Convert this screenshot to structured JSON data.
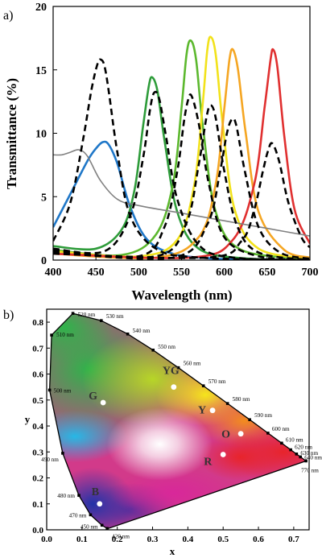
{
  "figure": {
    "panel_a_label": "a)",
    "panel_b_label": "b)"
  },
  "chart_data": [
    {
      "type": "line",
      "panel": "a)",
      "xlabel": "Wavelength (nm)",
      "ylabel": "Transmittance (%)",
      "xlim": [
        400,
        700
      ],
      "ylim": [
        0,
        20
      ],
      "xticks": [
        400,
        450,
        500,
        550,
        600,
        650,
        700
      ],
      "yticks": [
        0,
        5,
        10,
        15,
        20
      ],
      "grid": false,
      "series": [
        {
          "color": "#1f77c8",
          "style": "solid",
          "x": [
            400,
            420,
            440,
            450,
            458,
            465,
            475,
            490,
            510,
            540,
            580,
            620,
            700
          ],
          "y": [
            2.6,
            5.2,
            7.8,
            8.8,
            9.3,
            9.1,
            7.6,
            4.2,
            1.6,
            0.5,
            0.15,
            0.05,
            0.0
          ]
        },
        {
          "color": "#2e9c3a",
          "style": "solid",
          "x": [
            400,
            450,
            480,
            495,
            505,
            512,
            516,
            522,
            530,
            545,
            570,
            620,
            700
          ],
          "y": [
            1.1,
            0.9,
            2.4,
            5.5,
            10.5,
            13.8,
            14.4,
            13.3,
            9.5,
            3.8,
            0.9,
            0.15,
            0.0
          ]
        },
        {
          "color": "#5cb82e",
          "style": "solid",
          "x": [
            400,
            480,
            520,
            540,
            550,
            556,
            561,
            567,
            575,
            590,
            620,
            700
          ],
          "y": [
            0.8,
            0.4,
            2.0,
            6.0,
            12.0,
            16.3,
            17.3,
            15.8,
            10.5,
            3.8,
            0.8,
            0.1
          ]
        },
        {
          "color": "#f2e21b",
          "style": "solid",
          "x": [
            400,
            500,
            545,
            565,
            575,
            580,
            584,
            590,
            598,
            612,
            640,
            700
          ],
          "y": [
            0.7,
            0.3,
            1.6,
            6.0,
            12.5,
            16.5,
            17.6,
            16.2,
            10.8,
            4.0,
            0.9,
            0.1
          ]
        },
        {
          "color": "#f5a623",
          "style": "solid",
          "x": [
            400,
            520,
            570,
            590,
            600,
            606,
            610,
            616,
            625,
            640,
            670,
            700
          ],
          "y": [
            0.5,
            0.2,
            1.8,
            6.0,
            12.0,
            15.8,
            16.6,
            15.0,
            10.0,
            3.8,
            0.8,
            0.2
          ]
        },
        {
          "color": "#e03030",
          "style": "solid",
          "x": [
            400,
            560,
            610,
            635,
            647,
            654,
            657,
            662,
            670,
            682,
            700
          ],
          "y": [
            0.5,
            0.2,
            1.6,
            6.0,
            12.0,
            15.8,
            16.6,
            15.2,
            9.8,
            4.0,
            1.3
          ]
        },
        {
          "color": "#808080",
          "style": "solid",
          "x": [
            400,
            410,
            420,
            430,
            440,
            455,
            475,
            500,
            550,
            600,
            650,
            700
          ],
          "y": [
            8.3,
            8.3,
            8.5,
            8.7,
            8.2,
            6.3,
            4.8,
            4.3,
            3.7,
            3.1,
            2.5,
            1.9
          ]
        },
        {
          "color": "#000000",
          "style": "dashed",
          "x": [
            400,
            420,
            435,
            445,
            452,
            456,
            460,
            465,
            475,
            490,
            520,
            570,
            700
          ],
          "y": [
            1.5,
            4.5,
            9.5,
            13.5,
            15.5,
            15.8,
            15.3,
            13.3,
            8.5,
            3.5,
            0.9,
            0.2,
            0.0
          ]
        },
        {
          "color": "#000000",
          "style": "dashed",
          "x": [
            400,
            460,
            490,
            505,
            513,
            518,
            524,
            532,
            545,
            570,
            610,
            700
          ],
          "y": [
            0.9,
            0.7,
            3.5,
            8.0,
            11.8,
            13.2,
            12.7,
            9.7,
            4.8,
            1.2,
            0.2,
            0.0
          ]
        },
        {
          "color": "#000000",
          "style": "dashed",
          "x": [
            400,
            500,
            530,
            545,
            553,
            558,
            562,
            570,
            582,
            600,
            640,
            700
          ],
          "y": [
            0.8,
            0.3,
            2.6,
            7.0,
            11.0,
            12.7,
            12.9,
            10.8,
            6.0,
            1.8,
            0.3,
            0.0
          ]
        },
        {
          "color": "#000000",
          "style": "dashed",
          "x": [
            400,
            520,
            555,
            570,
            579,
            584,
            590,
            600,
            615,
            640,
            700
          ],
          "y": [
            0.7,
            0.3,
            2.8,
            7.5,
            11.2,
            12.2,
            11.2,
            7.0,
            2.7,
            0.6,
            0.0
          ]
        },
        {
          "color": "#000000",
          "style": "dashed",
          "x": [
            400,
            540,
            580,
            595,
            603,
            609,
            614,
            624,
            640,
            665,
            700
          ],
          "y": [
            0.6,
            0.2,
            2.8,
            7.0,
            10.0,
            11.1,
            10.6,
            7.0,
            2.6,
            0.6,
            0.1
          ]
        },
        {
          "color": "#000000",
          "style": "dashed",
          "x": [
            400,
            580,
            620,
            635,
            645,
            651,
            656,
            664,
            675,
            690,
            700
          ],
          "y": [
            0.5,
            0.2,
            1.5,
            4.0,
            7.0,
            8.6,
            9.2,
            7.8,
            4.5,
            1.8,
            1.0
          ]
        }
      ]
    },
    {
      "type": "scatter",
      "panel": "b)",
      "xlabel": "x",
      "ylabel": "y",
      "xlim": [
        0,
        0.75
      ],
      "ylim": [
        0,
        0.85
      ],
      "xticks": [
        0.0,
        0.1,
        0.2,
        0.3,
        0.4,
        0.5,
        0.6,
        0.7
      ],
      "yticks": [
        0.0,
        0.1,
        0.2,
        0.3,
        0.4,
        0.5,
        0.6,
        0.7,
        0.8
      ],
      "wavelength_marks": [
        {
          "label": "420 nm",
          "x": 0.1714,
          "y": 0.0051
        },
        {
          "label": "450 nm",
          "x": 0.1566,
          "y": 0.0177
        },
        {
          "label": "470 nm",
          "x": 0.1241,
          "y": 0.0578
        },
        {
          "label": "480 nm",
          "x": 0.0913,
          "y": 0.1327
        },
        {
          "label": "490 nm",
          "x": 0.0454,
          "y": 0.295
        },
        {
          "label": "500 nm",
          "x": 0.0082,
          "y": 0.5384
        },
        {
          "label": "510 nm",
          "x": 0.0139,
          "y": 0.7502
        },
        {
          "label": "520 nm",
          "x": 0.0743,
          "y": 0.8338
        },
        {
          "label": "530 nm",
          "x": 0.1547,
          "y": 0.8059
        },
        {
          "label": "540 nm",
          "x": 0.2296,
          "y": 0.7543
        },
        {
          "label": "550 nm",
          "x": 0.3016,
          "y": 0.6923
        },
        {
          "label": "560 nm",
          "x": 0.3731,
          "y": 0.6245
        },
        {
          "label": "570 nm",
          "x": 0.4441,
          "y": 0.5547
        },
        {
          "label": "580 nm",
          "x": 0.5125,
          "y": 0.4866
        },
        {
          "label": "590 nm",
          "x": 0.5752,
          "y": 0.4242
        },
        {
          "label": "600 nm",
          "x": 0.627,
          "y": 0.3725
        },
        {
          "label": "610 nm",
          "x": 0.6658,
          "y": 0.334
        },
        {
          "label": "620 nm",
          "x": 0.6915,
          "y": 0.3083
        },
        {
          "label": "630 nm",
          "x": 0.7079,
          "y": 0.292
        },
        {
          "label": "640 nm",
          "x": 0.719,
          "y": 0.2809
        },
        {
          "label": "770 nm",
          "x": 0.7347,
          "y": 0.2653
        }
      ],
      "points": [
        {
          "label": "G",
          "x": 0.16,
          "y": 0.49
        },
        {
          "label": "YG",
          "x": 0.36,
          "y": 0.55
        },
        {
          "label": "Y",
          "x": 0.47,
          "y": 0.46
        },
        {
          "label": "O",
          "x": 0.55,
          "y": 0.37
        },
        {
          "label": "R",
          "x": 0.5,
          "y": 0.29
        },
        {
          "label": "B",
          "x": 0.15,
          "y": 0.1
        }
      ]
    }
  ]
}
